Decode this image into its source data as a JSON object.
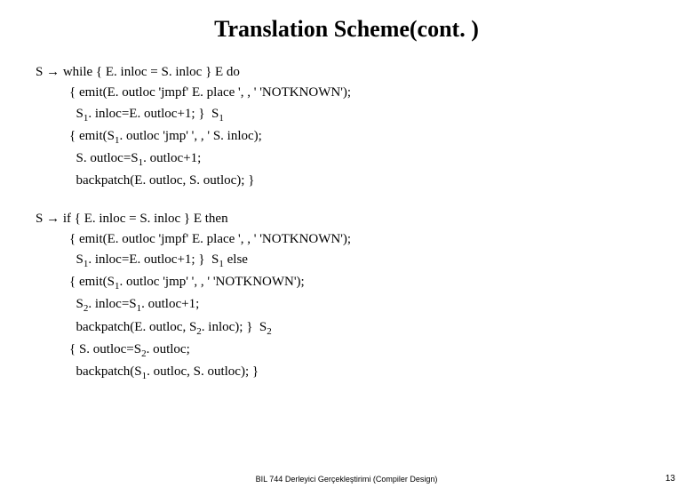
{
  "title": "Translation Scheme(cont. )",
  "block1": {
    "l1a": "S ",
    "l1b": " while { E. inloc = S. inloc } E do",
    "l2": "{ emit(E. outloc 'jmpf' E. place ', , ' 'NOTKNOWN');",
    "l3a": "  S",
    "l3b": ". inloc=E. outloc+1; }  S",
    "l4a": "{ emit(S",
    "l4b": ". outloc 'jmp' ', , ' S. inloc);",
    "l5a": "  S. outloc=S",
    "l5b": ". outloc+1;",
    "l6": "  backpatch(E. outloc, S. outloc); }"
  },
  "block2": {
    "l1a": "S ",
    "l1b": " if { E. inloc = S. inloc } E then",
    "l2": "{ emit(E. outloc 'jmpf' E. place ', , ' 'NOTKNOWN');",
    "l3a": "  S",
    "l3b": ". inloc=E. outloc+1; }  S",
    "l3c": " else",
    "l4a": "{ emit(S",
    "l4b": ". outloc 'jmp' ', , ' 'NOTKNOWN');",
    "l5a": "  S",
    "l5b": ". inloc=S",
    "l5c": ". outloc+1;",
    "l6a": "  backpatch(E. outloc, S",
    "l6b": ". inloc); }  S",
    "l7a": "{ S. outloc=S",
    "l7b": ". outloc;",
    "l8a": "  backpatch(S",
    "l8b": ". outloc, S. outloc); }"
  },
  "arrow": "→",
  "sub1": "1",
  "sub2": "2",
  "footer": "BIL 744 Derleyici Gerçekleştirimi (Compiler Design)",
  "pagenum": "13"
}
